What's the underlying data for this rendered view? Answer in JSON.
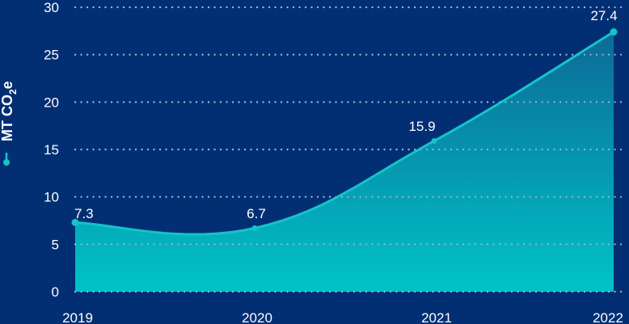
{
  "chart_data": {
    "type": "area",
    "title": "",
    "xlabel": "",
    "ylabel": "MT CO2e",
    "ylabel_parts": {
      "main": "MT CO",
      "sub": "2",
      "tail": "e"
    },
    "categories": [
      "2019",
      "2020",
      "2021",
      "2022"
    ],
    "series": [
      {
        "name": "MT CO2e",
        "values": [
          7.3,
          6.7,
          15.9,
          27.4
        ],
        "labels": [
          "7.3",
          "6.7",
          "15.9",
          "27.4"
        ]
      }
    ],
    "ylim": [
      0,
      30
    ],
    "yticks": [
      "0",
      "5",
      "10",
      "15",
      "20",
      "25",
      "30"
    ],
    "grid": true,
    "grid_style": "dotted",
    "legend_position": "left-vertical"
  },
  "colors": {
    "background": "#022f73",
    "line": "#16c3c8",
    "fill_top": "#0a6e98",
    "fill_bottom": "#00c2c6",
    "grid": "#9fb3cf",
    "text": "#ffffff"
  }
}
